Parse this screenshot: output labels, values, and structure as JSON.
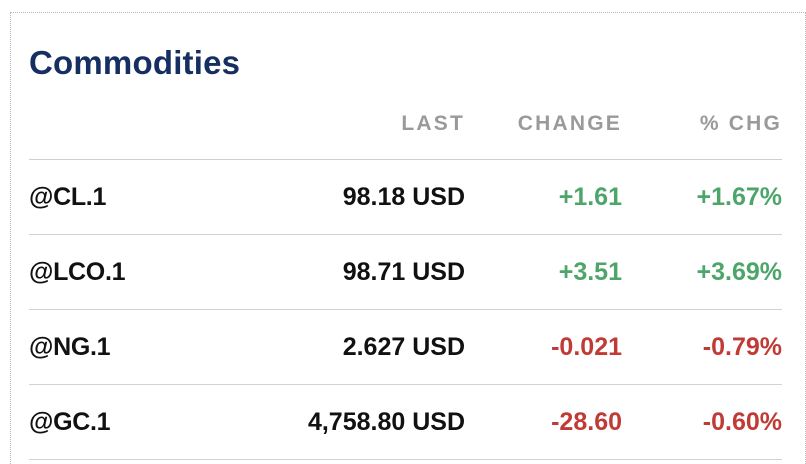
{
  "widget": {
    "title": "Commodities",
    "columns": {
      "last": "LAST",
      "change": "CHANGE",
      "pct_change": "% CHG"
    },
    "rows": [
      {
        "symbol": "@CL.1",
        "last": "98.18 USD",
        "change": "+1.61",
        "pct_change": "+1.67%",
        "direction": "up"
      },
      {
        "symbol": "@LCO.1",
        "last": "98.71 USD",
        "change": "+3.51",
        "pct_change": "+3.69%",
        "direction": "up"
      },
      {
        "symbol": "@NG.1",
        "last": "2.627 USD",
        "change": "-0.021",
        "pct_change": "-0.79%",
        "direction": "down"
      },
      {
        "symbol": "@GC.1",
        "last": "4,758.80 USD",
        "change": "-28.60",
        "pct_change": "-0.60%",
        "direction": "down"
      }
    ]
  },
  "colors": {
    "title": "#162f63",
    "header": "#9a9a9a",
    "up": "#4da56a",
    "down": "#c03b36",
    "text": "#111111"
  }
}
